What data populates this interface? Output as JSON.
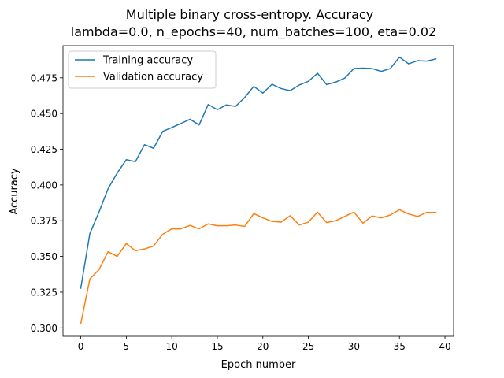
{
  "chart_data": {
    "type": "line",
    "title": "Multiple binary cross-entropy. Accuracy",
    "subtitle": "lambda=0.0, n_epochs=40, num_batches=100, eta=0.02",
    "xlabel": "Epoch number",
    "ylabel": "Accuracy",
    "xlim": [
      -1.95,
      40.95
    ],
    "ylim": [
      0.2941,
      0.4975
    ],
    "xticks": [
      0,
      5,
      10,
      15,
      20,
      25,
      30,
      35,
      40
    ],
    "xtick_labels": [
      "0",
      "5",
      "10",
      "15",
      "20",
      "25",
      "30",
      "35",
      "40"
    ],
    "yticks": [
      0.3,
      0.325,
      0.35,
      0.375,
      0.4,
      0.425,
      0.45,
      0.475
    ],
    "ytick_labels": [
      "0.300",
      "0.325",
      "0.350",
      "0.375",
      "0.400",
      "0.425",
      "0.450",
      "0.475"
    ],
    "grid": false,
    "legend_position": "upper-left",
    "x": [
      0,
      1,
      2,
      3,
      4,
      5,
      6,
      7,
      8,
      9,
      10,
      11,
      12,
      13,
      14,
      15,
      16,
      17,
      18,
      19,
      20,
      21,
      22,
      23,
      24,
      25,
      26,
      27,
      28,
      29,
      30,
      31,
      32,
      33,
      34,
      35,
      36,
      37,
      38,
      39
    ],
    "series": [
      {
        "name": "Training accuracy",
        "color": "#1f77b4",
        "values": [
          0.3277,
          0.366,
          0.381,
          0.3974,
          0.4083,
          0.4177,
          0.4163,
          0.4282,
          0.4257,
          0.4375,
          0.4402,
          0.443,
          0.446,
          0.442,
          0.4563,
          0.4527,
          0.456,
          0.455,
          0.4612,
          0.469,
          0.4643,
          0.4705,
          0.4675,
          0.466,
          0.47,
          0.4725,
          0.4782,
          0.4703,
          0.472,
          0.4748,
          0.4815,
          0.4818,
          0.4815,
          0.4795,
          0.4815,
          0.4895,
          0.4848,
          0.487,
          0.4867,
          0.4882
        ]
      },
      {
        "name": "Validation accuracy",
        "color": "#ff7f0e",
        "values": [
          0.303,
          0.3342,
          0.3407,
          0.3533,
          0.35,
          0.359,
          0.354,
          0.3552,
          0.3573,
          0.3655,
          0.3693,
          0.3693,
          0.3717,
          0.3693,
          0.3728,
          0.3715,
          0.3715,
          0.372,
          0.371,
          0.38,
          0.377,
          0.3745,
          0.374,
          0.3785,
          0.372,
          0.374,
          0.381,
          0.3737,
          0.375,
          0.378,
          0.381,
          0.3733,
          0.3783,
          0.377,
          0.379,
          0.3827,
          0.3797,
          0.378,
          0.3808,
          0.3808
        ]
      }
    ]
  }
}
